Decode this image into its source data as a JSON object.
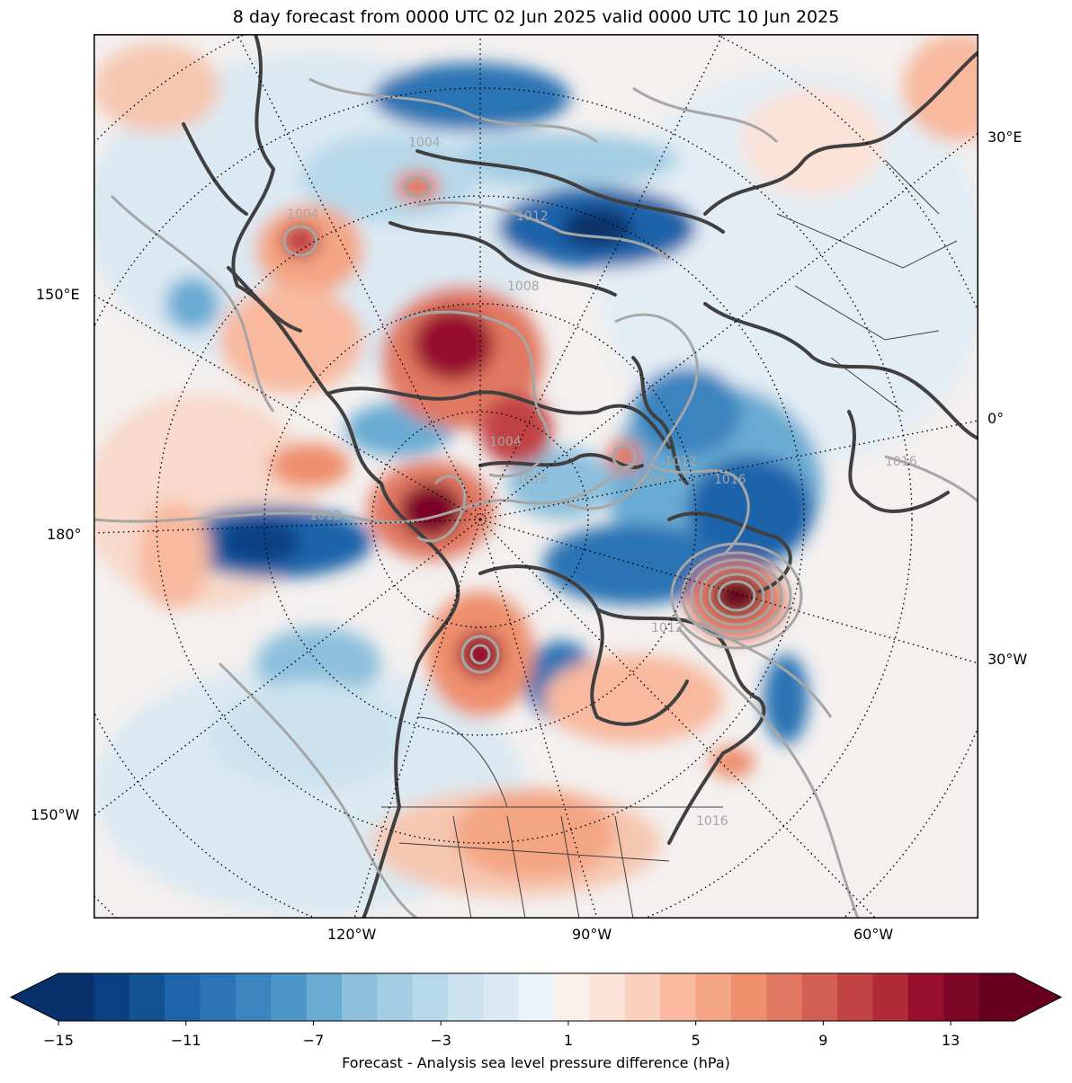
{
  "title": "8 day forecast from 0000 UTC 02 Jun 2025 valid 0000 UTC 10 Jun 2025",
  "map": {
    "longitude_labels_left": [
      "150°E",
      "180°",
      "150°W"
    ],
    "longitude_labels_right": [
      "30°E",
      "0°",
      "30°W"
    ],
    "longitude_labels_bottom": [
      "120°W",
      "90°W",
      "60°W"
    ],
    "contour_labels": [
      "1004",
      "1004",
      "1008",
      "1012",
      "1004",
      "1016",
      "1012",
      "1008",
      "1012",
      "1016",
      "1012",
      "1016",
      "1016"
    ],
    "contour_colour": "#a6a6a6",
    "coastline_colour": "#404040"
  },
  "colorbar": {
    "label": "Forecast - Analysis sea level pressure difference (hPa)",
    "ticks": [
      "−15",
      "−11",
      "−7",
      "−3",
      "1",
      "5",
      "9",
      "13"
    ],
    "colors": [
      "#08306b",
      "#0b4184",
      "#125192",
      "#1f64aa",
      "#2b73b4",
      "#3a84bf",
      "#4d97c8",
      "#6aabd3",
      "#8dc0dd",
      "#a3cde3",
      "#b7d8ea",
      "#cce3ef",
      "#dbe9f2",
      "#eef3f7",
      "#faf0ec",
      "#fbe2d7",
      "#fbd0bc",
      "#f8b99f",
      "#f4a584",
      "#ee8f6d",
      "#e17862",
      "#d25f52",
      "#c14344",
      "#b02a38",
      "#960f2d",
      "#7d0628",
      "#67001f"
    ],
    "range": [
      -15,
      15
    ]
  }
}
